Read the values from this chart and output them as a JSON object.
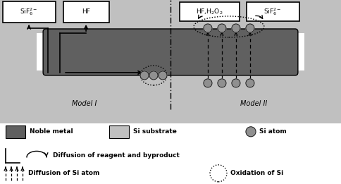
{
  "white": "#ffffff",
  "dark_gray": "#606060",
  "light_gray": "#c0c0c0",
  "mid_gray": "#909090",
  "black": "#000000",
  "label_model1": "Model I",
  "label_model2": "Model II",
  "legend_noble_metal": "Noble metal",
  "legend_si_substrate": "Si substrate",
  "legend_si_atom": "Si atom",
  "legend_diffusion_reagent": "Diffusion of reagent and byproduct",
  "legend_diffusion_si": "Diffusion of Si atom",
  "legend_oxidation": "Oxidation of Si"
}
